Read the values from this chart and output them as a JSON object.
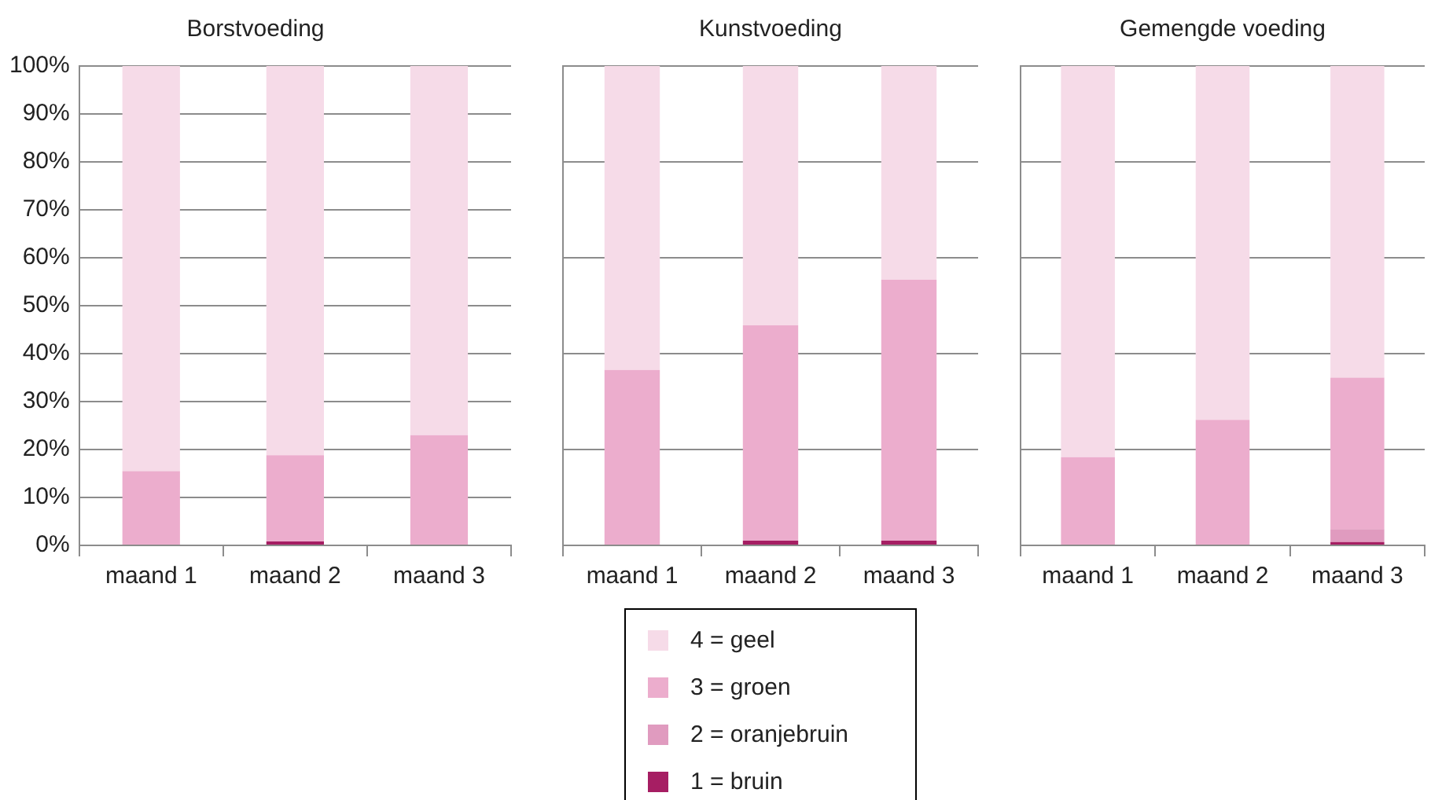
{
  "chart_data": [
    {
      "type": "bar",
      "title": "Borstvoeding",
      "categories": [
        "maand 1",
        "maand 2",
        "maand 3"
      ],
      "stacked": true,
      "grid": "y",
      "ylim": [
        0,
        100
      ],
      "yticks": [
        {
          "value": 0,
          "label": "0%"
        },
        {
          "value": 10,
          "label": "10%"
        },
        {
          "value": 20,
          "label": "20%"
        },
        {
          "value": 30,
          "label": "30%"
        },
        {
          "value": 40,
          "label": "40%"
        },
        {
          "value": 50,
          "label": "50%"
        },
        {
          "value": 60,
          "label": "60%"
        },
        {
          "value": 70,
          "label": "70%"
        },
        {
          "value": 80,
          "label": "80%"
        },
        {
          "value": 90,
          "label": "90%"
        },
        {
          "value": 100,
          "label": "100%"
        }
      ],
      "series": [
        {
          "color": "#a61e63",
          "values": [
            0,
            0.8,
            0
          ]
        },
        {
          "color": "#e09bbf",
          "values": [
            0,
            0,
            0
          ]
        },
        {
          "color": "#ecadcd",
          "values": [
            15.5,
            18,
            23
          ]
        },
        {
          "color": "#f6dbe8",
          "values": [
            84.5,
            81.2,
            77
          ]
        }
      ]
    },
    {
      "type": "bar",
      "title": "Kunstvoeding",
      "categories": [
        "maand 1",
        "maand 2",
        "maand 3"
      ],
      "stacked": true,
      "grid": "y",
      "ylim": [
        0,
        100
      ],
      "yticks": [
        0,
        20,
        40,
        60,
        80,
        100
      ],
      "tick_labels": "x",
      "legend": "bottom",
      "series": [
        {
          "name": "1 = bruin",
          "color": "#a61e63",
          "values": [
            0,
            1,
            1
          ]
        },
        {
          "name": "2 = oranjebruin",
          "color": "#e09bbf",
          "values": [
            0,
            0,
            0
          ]
        },
        {
          "name": "3 = groen",
          "color": "#ecadcd",
          "values": [
            36.6,
            44.9,
            54.4
          ]
        },
        {
          "name": "4 = geel",
          "color": "#f6dbe8",
          "values": [
            63.4,
            54.1,
            44.6
          ]
        }
      ]
    },
    {
      "type": "bar",
      "title": "Gemengde voeding",
      "categories": [
        "maand 1",
        "maand 2",
        "maand 3"
      ],
      "stacked": true,
      "grid": "y",
      "ylim": [
        0,
        100
      ],
      "yticks": [
        0,
        20,
        40,
        60,
        80,
        100
      ],
      "tick_labels": "x",
      "series": [
        {
          "color": "#a61e63",
          "values": [
            0,
            0,
            0.7
          ]
        },
        {
          "color": "#e09bbf",
          "values": [
            0,
            0,
            2.7
          ]
        },
        {
          "color": "#ecadcd",
          "values": [
            18.4,
            26.2,
            31.6
          ]
        },
        {
          "color": "#f6dbe8",
          "values": [
            81.6,
            73.8,
            65
          ]
        }
      ]
    }
  ]
}
